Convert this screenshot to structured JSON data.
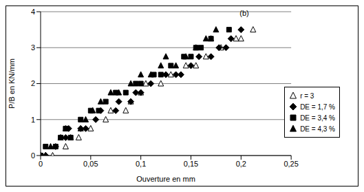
{
  "chart_data": {
    "type": "scatter",
    "title": "(b)",
    "x_label": "Ouverture en mm",
    "y_label": "P/B en KN/mm",
    "xlim": [
      0,
      0.25
    ],
    "xticks": [
      0,
      {
        "value": 0.05,
        "label": "0,05"
      },
      {
        "value": 0.1,
        "label": "0,1"
      },
      {
        "value": 0.15,
        "label": "0,15"
      },
      {
        "value": 0.2,
        "label": "0,2"
      },
      {
        "value": 0.25,
        "label": "0,25"
      }
    ],
    "ylim": [
      0,
      4
    ],
    "yticks": [
      0,
      1,
      2,
      3,
      4
    ],
    "grid": "y",
    "legend": "lower right",
    "series": [
      {
        "name": "r = 3",
        "color": "#000000",
        "marker": "open-triangle",
        "x": [
          0,
          0.005,
          0.012,
          0.025,
          0.03,
          0.038,
          0.05,
          0.065,
          0.07,
          0.085,
          0.09,
          0.1,
          0.105,
          0.12,
          0.13,
          0.145,
          0.155,
          0.165,
          0.18,
          0.195,
          0.2,
          0.212
        ],
        "values": [
          0,
          0,
          0,
          0.25,
          0.5,
          0.5,
          0.75,
          1,
          1.25,
          1.25,
          1.5,
          1.75,
          2,
          2,
          2.25,
          2.5,
          2.5,
          2.75,
          3,
          3.25,
          3.25,
          3.5
        ]
      },
      {
        "name": "DE = 1,7 %",
        "color": "#000000",
        "marker": "diamond",
        "x": [
          0,
          0.005,
          0.015,
          0.025,
          0.028,
          0.04,
          0.045,
          0.055,
          0.06,
          0.075,
          0.078,
          0.09,
          0.095,
          0.1,
          0.11,
          0.125,
          0.135,
          0.14,
          0.15,
          0.158,
          0.17,
          0.178,
          0.185,
          0.19,
          0.2
        ],
        "values": [
          0,
          0,
          0.25,
          0.5,
          0.75,
          0.75,
          0.75,
          1,
          1.25,
          1.25,
          1.5,
          1.5,
          1.75,
          1.75,
          2,
          2.25,
          2.25,
          2.25,
          2.5,
          2.75,
          2.75,
          3,
          3,
          3.25,
          3.5
        ]
      },
      {
        "name": "DE = 3,4 %",
        "color": "#000000",
        "marker": "square",
        "x": [
          0,
          0.005,
          0.015,
          0.02,
          0.025,
          0.03,
          0.04,
          0.05,
          0.058,
          0.065,
          0.075,
          0.085,
          0.095,
          0.1,
          0.113,
          0.12,
          0.13,
          0.143,
          0.15,
          0.155,
          0.16,
          0.17,
          0.188
        ],
        "values": [
          0,
          0.25,
          0.25,
          0.5,
          0.75,
          0.5,
          1,
          1.25,
          1.25,
          1.5,
          1.75,
          1.75,
          2,
          2,
          2.25,
          2.25,
          2.5,
          2.75,
          2.75,
          3,
          3,
          3.25,
          3.5
        ]
      },
      {
        "name": "DE = 4,3 %",
        "color": "#000000",
        "marker": "triangle",
        "x": [
          0,
          0.005,
          0.01,
          0.02,
          0.025,
          0.04,
          0.045,
          0.052,
          0.06,
          0.07,
          0.078,
          0.09,
          0.1,
          0.11,
          0.12,
          0.125,
          0.135,
          0.145,
          0.155,
          0.165,
          0.17,
          0.175
        ],
        "values": [
          0,
          0,
          0.25,
          0.5,
          0.75,
          0.75,
          1,
          1.25,
          1.5,
          1.75,
          1.75,
          2,
          2.25,
          2.25,
          2.5,
          2.75,
          2.5,
          2.75,
          3,
          3.25,
          3.25,
          3.5
        ]
      }
    ]
  }
}
